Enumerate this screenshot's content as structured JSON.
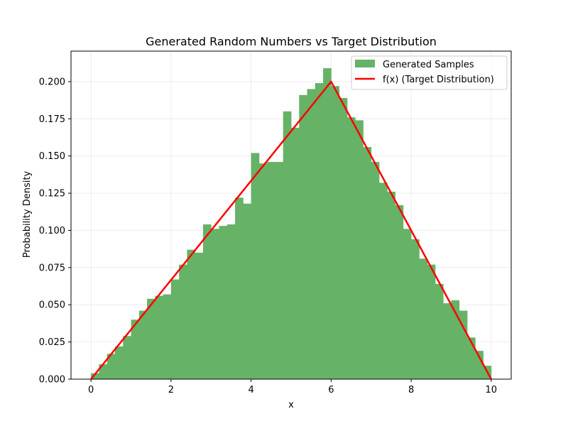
{
  "chart_data": {
    "type": "bar",
    "title": "Generated Random Numbers vs Target Distribution",
    "xlabel": "x",
    "ylabel": "Probability Density",
    "xlim": [
      -0.5,
      10.5
    ],
    "ylim": [
      0,
      0.2205
    ],
    "xticks": [
      0,
      2,
      4,
      6,
      8,
      10
    ],
    "xtick_labels": [
      "0",
      "2",
      "4",
      "6",
      "8",
      "10"
    ],
    "yticks": [
      0,
      0.025,
      0.05,
      0.075,
      0.1,
      0.125,
      0.15,
      0.175,
      0.2
    ],
    "ytick_labels": [
      "0.000",
      "0.025",
      "0.050",
      "0.075",
      "0.100",
      "0.125",
      "0.150",
      "0.175",
      "0.200"
    ],
    "grid": true,
    "legend_position": "top-right",
    "bin_edges_range": [
      0,
      10
    ],
    "series": [
      {
        "name": "Generated Samples",
        "type": "histogram",
        "color": "#66b266",
        "values": [
          0.004,
          0.01,
          0.017,
          0.022,
          0.029,
          0.04,
          0.046,
          0.054,
          0.056,
          0.057,
          0.067,
          0.077,
          0.087,
          0.085,
          0.104,
          0.101,
          0.103,
          0.104,
          0.122,
          0.118,
          0.152,
          0.145,
          0.146,
          0.146,
          0.18,
          0.169,
          0.191,
          0.195,
          0.199,
          0.209,
          0.197,
          0.189,
          0.176,
          0.174,
          0.156,
          0.146,
          0.132,
          0.126,
          0.117,
          0.101,
          0.094,
          0.081,
          0.077,
          0.064,
          0.051,
          0.053,
          0.046,
          0.028,
          0.019,
          0.009
        ]
      },
      {
        "name": "f(x) (Target Distribution)",
        "type": "line",
        "color": "#ff0000",
        "x": [
          0,
          6,
          10
        ],
        "y": [
          0,
          0.2,
          0
        ]
      }
    ]
  }
}
